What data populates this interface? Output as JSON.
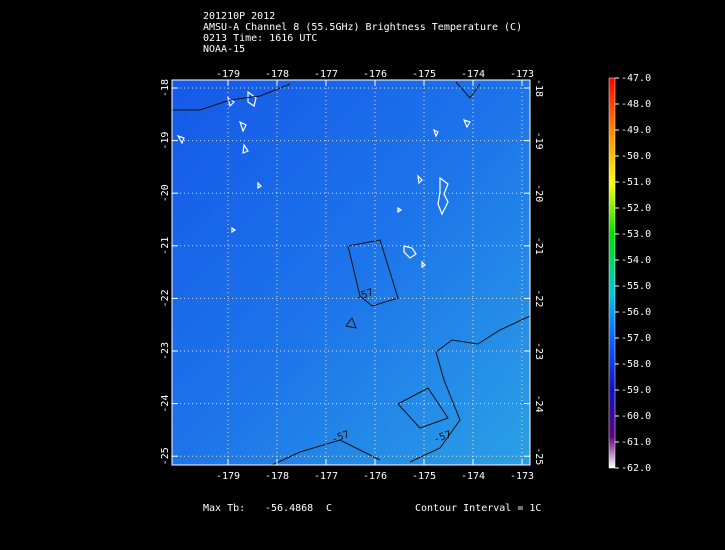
{
  "header": {
    "lines": [
      "201210P 2012",
      "AMSU-A Channel 8 (55.5GHz) Brightness Temperature (C)",
      "0213 Time: 1616 UTC",
      "NOAA-15"
    ]
  },
  "map": {
    "lon_ticks": [
      "-179",
      "-178",
      "-177",
      "-176",
      "-175",
      "-174",
      "-173"
    ],
    "lat_ticks": [
      "-18",
      "-19",
      "-20",
      "-21",
      "-22",
      "-23",
      "-24",
      "-25"
    ],
    "contour_labels": [
      "-57",
      "-57",
      "-57"
    ]
  },
  "colorbar": {
    "labels": [
      "-47.0",
      "-48.0",
      "-49.0",
      "-50.0",
      "-51.0",
      "-52.0",
      "-53.0",
      "-54.0",
      "-55.0",
      "-56.0",
      "-57.0",
      "-58.0",
      "-59.0",
      "-60.0",
      "-61.0",
      "-62.0"
    ]
  },
  "footer": {
    "max_label": "Max Tb:",
    "max_value": "-56.4868",
    "max_unit": "C",
    "interval": "Contour Interval = 1C"
  }
}
